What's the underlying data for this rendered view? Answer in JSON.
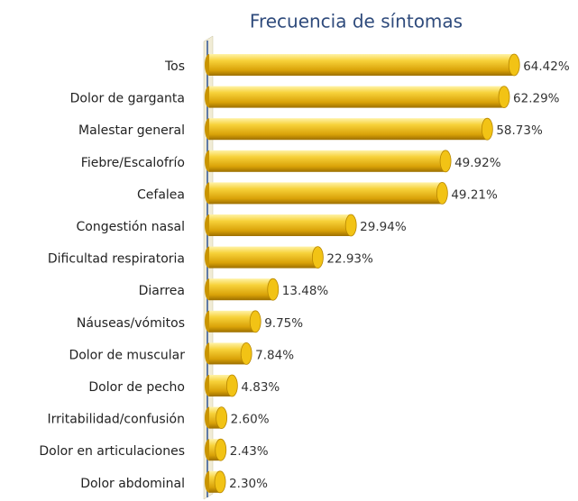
{
  "chart_data": {
    "type": "bar",
    "orientation": "horizontal",
    "title": "Frecuencia de síntomas",
    "categories": [
      "Tos",
      "Dolor de garganta",
      "Malestar general",
      "Fiebre/Escalofrío",
      "Cefalea",
      "Congestión nasal",
      "Dificultad respiratoria",
      "Diarrea",
      "Náuseas/vómitos",
      "Dolor de muscular",
      "Dolor de pecho",
      "Irritabilidad/confusión",
      "Dolor en articulaciones",
      "Dolor abdominal"
    ],
    "values": [
      64.42,
      62.29,
      58.73,
      49.92,
      49.21,
      29.94,
      22.93,
      13.48,
      9.75,
      7.84,
      4.83,
      2.6,
      2.43,
      2.3
    ],
    "value_labels": [
      "64.42%",
      "62.29%",
      "58.73%",
      "49.92%",
      "49.21%",
      "29.94%",
      "22.93%",
      "13.48%",
      "9.75%",
      "7.84%",
      "4.83%",
      "2.60%",
      "2.43%",
      "2.30%"
    ],
    "color": "#f2c315"
  }
}
